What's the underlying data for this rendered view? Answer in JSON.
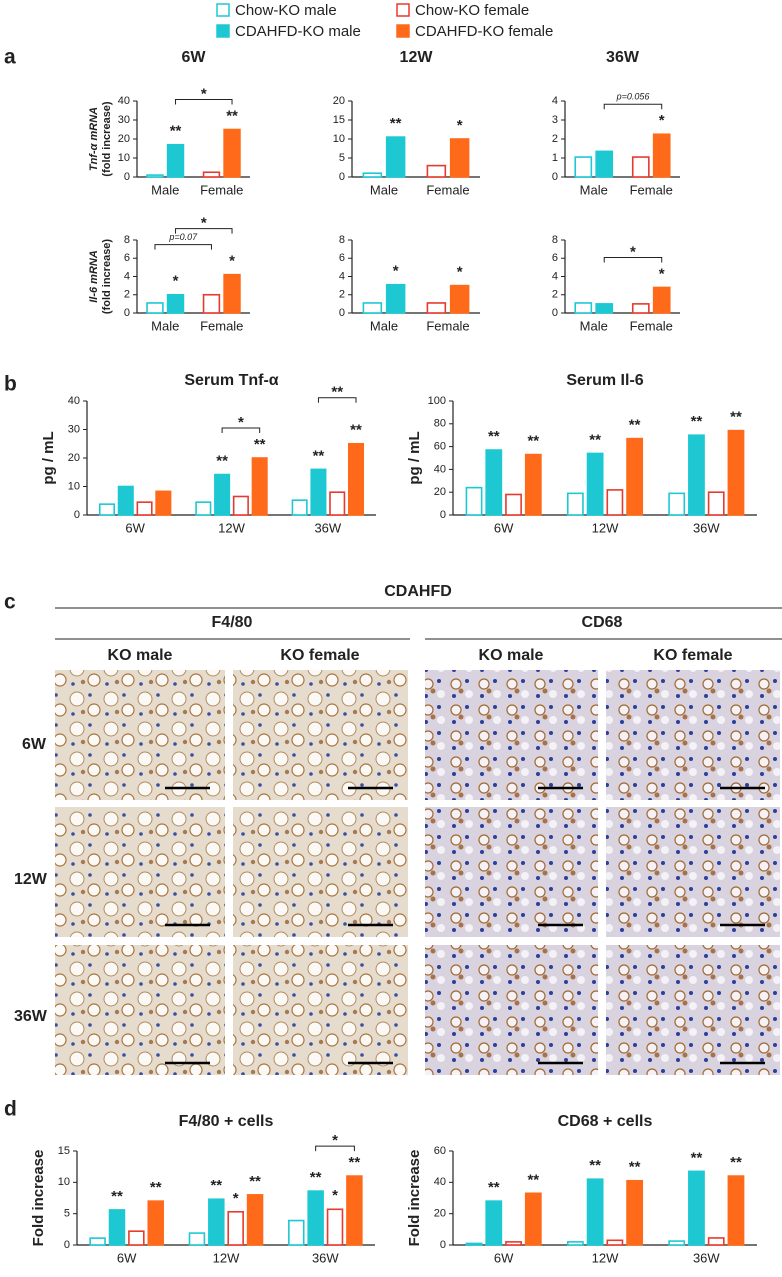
{
  "legend": [
    {
      "name": "Chow-KO male",
      "color": "#1ec8d3",
      "filled": false
    },
    {
      "name": "CDAHFD-KO male",
      "color": "#1ec8d3",
      "filled": true
    },
    {
      "name": "Chow-KO female",
      "color": "#e8392e",
      "filled": false
    },
    {
      "name": "CDAHFD-KO female",
      "color": "#ff6a1a",
      "filled": true
    }
  ],
  "panel_labels": [
    "a",
    "b",
    "c",
    "d"
  ],
  "chart_data": [
    {
      "type": "bar",
      "title": "6W",
      "ylabel": [
        "Tnf-α mRNA",
        "(fold increase)"
      ],
      "categories": [
        "Male",
        "Female"
      ],
      "ylim": [
        0,
        40
      ],
      "yticks": [
        0,
        10,
        20,
        30,
        40
      ],
      "series": [
        {
          "values": [
            1,
            null
          ]
        },
        {
          "values": [
            17,
            null
          ],
          "stars": [
            "**",
            null
          ]
        },
        {
          "values": [
            null,
            2.5
          ]
        },
        {
          "values": [
            null,
            25
          ],
          "stars": [
            null,
            "**"
          ]
        }
      ],
      "brackets": [
        {
          "series": [
            1,
            3
          ],
          "label": "*"
        }
      ]
    },
    {
      "type": "bar",
      "title": "12W",
      "categories": [
        "Male",
        "Female"
      ],
      "ylim": [
        0,
        20
      ],
      "yticks": [
        0,
        5,
        10,
        15,
        20
      ],
      "series": [
        {
          "values": [
            1,
            null
          ]
        },
        {
          "values": [
            10.5,
            null
          ],
          "stars": [
            "**",
            null
          ]
        },
        {
          "values": [
            null,
            3
          ]
        },
        {
          "values": [
            null,
            10
          ],
          "stars": [
            null,
            "*"
          ]
        }
      ]
    },
    {
      "type": "bar",
      "title": "36W",
      "categories": [
        "Male",
        "Female"
      ],
      "ylim": [
        0,
        4
      ],
      "yticks": [
        0,
        1,
        2,
        3,
        4
      ],
      "series": [
        {
          "values": [
            1.05,
            null
          ]
        },
        {
          "values": [
            1.35,
            null
          ]
        },
        {
          "values": [
            null,
            1.05
          ]
        },
        {
          "values": [
            null,
            2.25
          ],
          "stars": [
            null,
            "*"
          ]
        }
      ],
      "brackets": [
        {
          "series": [
            1,
            3
          ],
          "label": "p=0.056"
        }
      ]
    },
    {
      "type": "bar",
      "ylabel": [
        "Il-6 mRNA",
        "(fold increase)"
      ],
      "categories": [
        "Male",
        "Female"
      ],
      "ylim": [
        0,
        8
      ],
      "yticks": [
        0,
        2,
        4,
        6,
        8
      ],
      "series": [
        {
          "values": [
            1.1,
            null
          ]
        },
        {
          "values": [
            2.0,
            null
          ],
          "stars": [
            "*",
            null
          ]
        },
        {
          "values": [
            null,
            2.0
          ]
        },
        {
          "values": [
            null,
            4.2
          ],
          "stars": [
            null,
            "*"
          ]
        }
      ],
      "brackets": [
        {
          "series": [
            0,
            2
          ],
          "label": "p=0.07"
        },
        {
          "series": [
            1,
            3
          ],
          "label": "*"
        }
      ]
    },
    {
      "type": "bar",
      "categories": [
        "Male",
        "Female"
      ],
      "ylim": [
        0,
        8
      ],
      "yticks": [
        0,
        2,
        4,
        6,
        8
      ],
      "series": [
        {
          "values": [
            1.1,
            null
          ]
        },
        {
          "values": [
            3.1,
            null
          ],
          "stars": [
            "*",
            null
          ]
        },
        {
          "values": [
            null,
            1.1
          ]
        },
        {
          "values": [
            null,
            3.0
          ],
          "stars": [
            null,
            "*"
          ]
        }
      ]
    },
    {
      "type": "bar",
      "categories": [
        "Male",
        "Female"
      ],
      "ylim": [
        0,
        8
      ],
      "yticks": [
        0,
        2,
        4,
        6,
        8
      ],
      "series": [
        {
          "values": [
            1.1,
            null
          ]
        },
        {
          "values": [
            1.0,
            null
          ]
        },
        {
          "values": [
            null,
            1.0
          ]
        },
        {
          "values": [
            null,
            2.8
          ],
          "stars": [
            null,
            "*"
          ]
        }
      ],
      "brackets": [
        {
          "series": [
            1,
            3
          ],
          "label": "*"
        }
      ]
    },
    {
      "type": "bar",
      "title": "Serum Tnf-α",
      "ylabel": [
        "pg / mL"
      ],
      "categories": [
        "6W",
        "12W",
        "36W"
      ],
      "ylim": [
        0,
        40
      ],
      "yticks": [
        0,
        10,
        20,
        30,
        40
      ],
      "series": [
        {
          "values": [
            3.8,
            4.5,
            5.2
          ]
        },
        {
          "values": [
            10,
            14.2,
            16
          ],
          "stars": [
            null,
            "**",
            "**"
          ]
        },
        {
          "values": [
            4.5,
            6.5,
            8
          ]
        },
        {
          "values": [
            8.3,
            20,
            25
          ],
          "stars": [
            null,
            "**",
            "**"
          ]
        }
      ],
      "brackets": [
        {
          "category": 1,
          "series": [
            1,
            3
          ],
          "label": "*"
        },
        {
          "category": 2,
          "series": [
            1,
            3
          ],
          "label": "**"
        }
      ]
    },
    {
      "type": "bar",
      "title": "Serum Il-6",
      "ylabel": [
        "pg / mL"
      ],
      "categories": [
        "6W",
        "12W",
        "36W"
      ],
      "ylim": [
        0,
        100
      ],
      "yticks": [
        0,
        20,
        40,
        60,
        80,
        100
      ],
      "series": [
        {
          "values": [
            24,
            19,
            19
          ]
        },
        {
          "values": [
            57,
            54,
            70
          ],
          "stars": [
            "**",
            "**",
            "**"
          ]
        },
        {
          "values": [
            18,
            22,
            20
          ]
        },
        {
          "values": [
            53,
            67,
            74
          ],
          "stars": [
            "**",
            "**",
            "**"
          ]
        }
      ]
    },
    {
      "type": "bar",
      "title": "F4/80 + cells",
      "ylabel": [
        "Fold increase"
      ],
      "categories": [
        "6W",
        "12W",
        "36W"
      ],
      "ylim": [
        0,
        15
      ],
      "yticks": [
        0,
        5,
        10,
        15
      ],
      "series": [
        {
          "values": [
            1.1,
            1.9,
            3.9
          ]
        },
        {
          "values": [
            5.6,
            7.3,
            8.6
          ],
          "stars": [
            "**",
            "**",
            "**"
          ]
        },
        {
          "values": [
            2.2,
            5.3,
            5.7
          ],
          "stars": [
            null,
            "*",
            "*"
          ]
        },
        {
          "values": [
            7.0,
            8.0,
            11.0
          ],
          "stars": [
            "**",
            "**",
            "**"
          ]
        }
      ],
      "brackets": [
        {
          "category": 2,
          "series": [
            1,
            3
          ],
          "label": "*"
        }
      ]
    },
    {
      "type": "bar",
      "title": "CD68 + cells",
      "ylabel": [
        "Fold increase"
      ],
      "categories": [
        "6W",
        "12W",
        "36W"
      ],
      "ylim": [
        0,
        60
      ],
      "yticks": [
        0,
        20,
        40,
        60
      ],
      "series": [
        {
          "values": [
            1,
            2,
            2.5
          ]
        },
        {
          "values": [
            28,
            42,
            47
          ],
          "stars": [
            "**",
            "**",
            "**"
          ]
        },
        {
          "values": [
            2,
            3,
            4.5
          ]
        },
        {
          "values": [
            33,
            41,
            44
          ],
          "stars": [
            "**",
            "**",
            "**"
          ]
        }
      ]
    }
  ],
  "histology": {
    "title": "CDAHFD",
    "stains": [
      "F4/80",
      "CD68"
    ],
    "columns": [
      "KO male",
      "KO female"
    ],
    "rows": [
      "6W",
      "12W",
      "36W"
    ]
  }
}
